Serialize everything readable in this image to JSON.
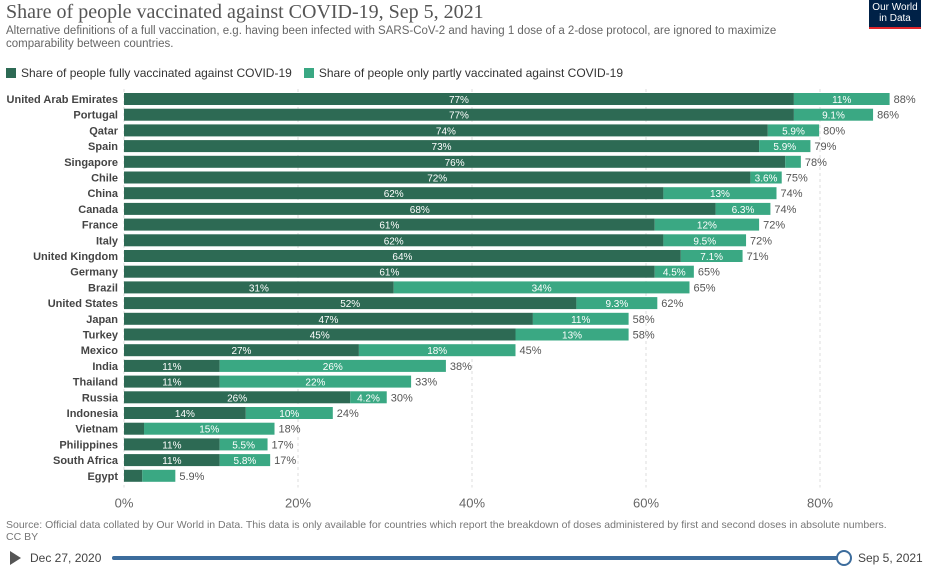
{
  "header": {
    "title": "Share of people vaccinated against COVID-19, Sep 5, 2021",
    "subtitle": "Alternative definitions of a full vaccination, e.g. having been infected with SARS-CoV-2 and having 1 dose of a 2-dose protocol, are ignored to maximize comparability between countries.",
    "logo_line1": "Our World",
    "logo_line2": "in Data"
  },
  "colors": {
    "full": "#2d6a54",
    "partial": "#3aa883",
    "logo_bg": "#002147",
    "logo_accent": "#e0262b",
    "timeline": "#3c6c9c"
  },
  "chart_data": {
    "type": "bar",
    "orientation": "horizontal",
    "stacked": true,
    "categories": [
      "United Arab Emirates",
      "Portugal",
      "Qatar",
      "Spain",
      "Singapore",
      "Chile",
      "China",
      "Canada",
      "France",
      "Italy",
      "United Kingdom",
      "Germany",
      "Brazil",
      "United States",
      "Japan",
      "Turkey",
      "Mexico",
      "India",
      "Thailand",
      "Russia",
      "Indonesia",
      "Vietnam",
      "Philippines",
      "South Africa",
      "Egypt"
    ],
    "series": [
      {
        "name": "Share of people fully vaccinated against COVID-19",
        "values": [
          77,
          77,
          74,
          73,
          76,
          72,
          62,
          68,
          61,
          62,
          64,
          61,
          31,
          52,
          47,
          45,
          27,
          11,
          11,
          26,
          14,
          2.3,
          11,
          11,
          2.1
        ],
        "labels": [
          "77%",
          "77%",
          "74%",
          "73%",
          "76%",
          "72%",
          "62%",
          "68%",
          "61%",
          "62%",
          "64%",
          "61%",
          "31%",
          "52%",
          "47%",
          "45%",
          "27%",
          "11%",
          "11%",
          "26%",
          "14%",
          "",
          "11%",
          "11%",
          ""
        ]
      },
      {
        "name": "Share of people only partly vaccinated against COVID-19",
        "values": [
          11,
          9.1,
          5.9,
          5.9,
          1.8,
          3.6,
          13,
          6.3,
          12,
          9.5,
          7.1,
          4.5,
          34,
          9.3,
          11,
          13,
          18,
          26,
          22,
          4.2,
          10,
          15,
          5.5,
          5.8,
          3.8
        ],
        "labels": [
          "11%",
          "9.1%",
          "5.9%",
          "5.9%",
          "",
          "3.6%",
          "13%",
          "6.3%",
          "12%",
          "9.5%",
          "7.1%",
          "4.5%",
          "34%",
          "9.3%",
          "11%",
          "13%",
          "18%",
          "26%",
          "22%",
          "4.2%",
          "10%",
          "15%",
          "5.5%",
          "5.8%",
          ""
        ]
      }
    ],
    "totals": [
      "88%",
      "86%",
      "80%",
      "79%",
      "78%",
      "75%",
      "74%",
      "74%",
      "72%",
      "72%",
      "71%",
      "65%",
      "65%",
      "62%",
      "58%",
      "58%",
      "45%",
      "38%",
      "33%",
      "30%",
      "24%",
      "18%",
      "17%",
      "17%",
      "5.9%"
    ],
    "xlim": [
      0,
      90
    ],
    "xticks": [
      0,
      20,
      40,
      60,
      80
    ],
    "xtick_labels": [
      "0%",
      "20%",
      "40%",
      "60%",
      "80%"
    ],
    "grid": true,
    "legend": "top-left"
  },
  "footer": {
    "source": "Source: Official data collated by Our World in Data. This data is only available for countries which report the breakdown of doses administered by first and second doses in absolute numbers.",
    "license": "CC BY"
  },
  "timeline": {
    "start_label": "Dec 27, 2020",
    "end_label": "Sep 5, 2021",
    "position": 1.0
  }
}
